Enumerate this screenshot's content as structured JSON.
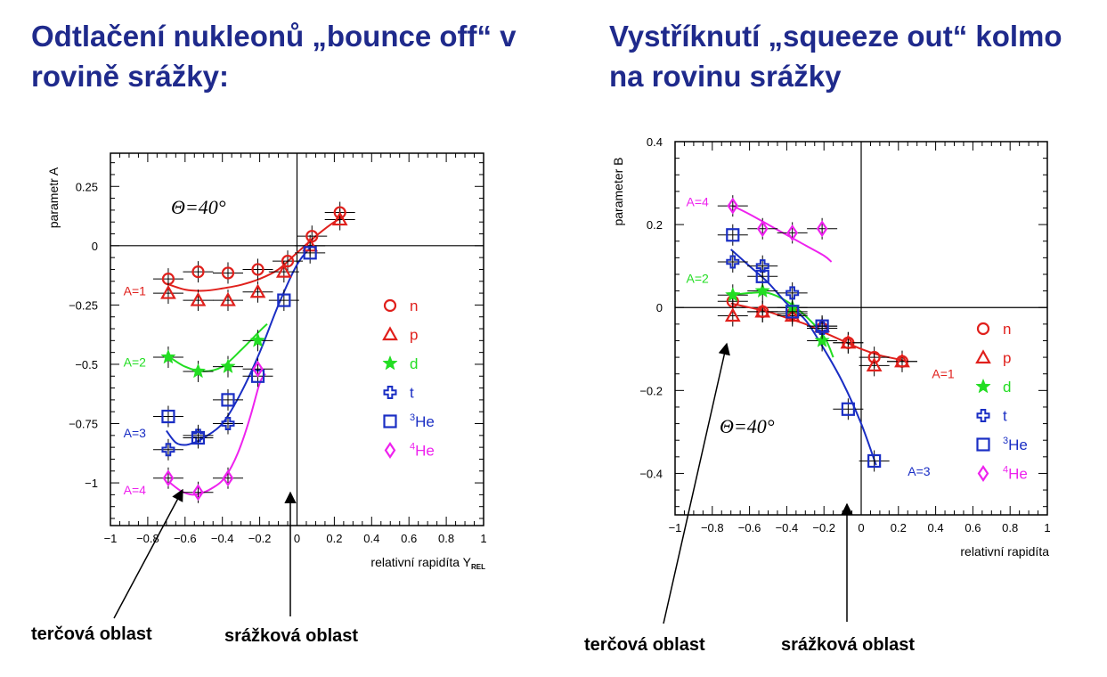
{
  "titles": {
    "left": "Odtlačení nukleonů „bounce off“ v rovině srážky:",
    "right": "Vystříknutí „squeeze out“ kolmo na rovinu srážky"
  },
  "labels": {
    "target_left": "terčová oblast",
    "collision_left": "srážková oblast",
    "target_right": "terčová oblast",
    "collision_right": "srážková oblast"
  },
  "colors": {
    "title": "#1f2a8c",
    "n": "#e0201c",
    "p": "#e0201c",
    "d": "#22dd22",
    "t": "#1a2ec4",
    "he3": "#1a2ec4",
    "he4": "#ee22ee"
  },
  "chart_data": [
    {
      "type": "scatter",
      "theta_label": "Θ=40°",
      "xlabel": "relativní rapidíta Y",
      "xlabel_sub": "REL",
      "ylabel": "parametr A",
      "xlim": [
        -1,
        1
      ],
      "ylim": [
        -1.18,
        0.39
      ],
      "xticks": [
        -1,
        -0.8,
        -0.6,
        -0.4,
        -0.2,
        0,
        0.2,
        0.4,
        0.6,
        0.8,
        1
      ],
      "xtick_labels": [
        "−1",
        "−0.8",
        "−0.6",
        "−0.4",
        "−0.2",
        "0",
        "0.2",
        "0.4",
        "0.6",
        "0.8",
        "1"
      ],
      "yticks": [
        0.25,
        0,
        -0.25,
        -0.5,
        -0.75,
        -1
      ],
      "ytick_labels": [
        "0.25",
        "0",
        "−0.25",
        "−0.5",
        "−0.75",
        "−1"
      ],
      "legend": [
        {
          "key": "n",
          "marker": "circle",
          "label": "n"
        },
        {
          "key": "p",
          "marker": "triangle",
          "label": "p"
        },
        {
          "key": "d",
          "marker": "star",
          "label": "d"
        },
        {
          "key": "t",
          "marker": "cross",
          "label": "t"
        },
        {
          "key": "he3",
          "marker": "square",
          "sup": "3",
          "label": "He"
        },
        {
          "key": "he4",
          "marker": "diamond",
          "sup": "4",
          "label": "He"
        }
      ],
      "series": [
        {
          "name": "n",
          "marker": "circle",
          "color": "n",
          "x": [
            -0.69,
            -0.53,
            -0.37,
            -0.21,
            -0.05,
            0.08,
            0.23
          ],
          "y": [
            -0.14,
            -0.11,
            -0.115,
            -0.1,
            -0.065,
            0.04,
            0.14
          ]
        },
        {
          "name": "p",
          "marker": "triangle",
          "color": "p",
          "x": [
            -0.69,
            -0.53,
            -0.37,
            -0.21,
            -0.07,
            0.07,
            0.23
          ],
          "y": [
            -0.2,
            -0.23,
            -0.23,
            -0.195,
            -0.11,
            0.0,
            0.11
          ]
        },
        {
          "name": "d",
          "marker": "star",
          "color": "d",
          "x": [
            -0.69,
            -0.53,
            -0.37,
            -0.21
          ],
          "y": [
            -0.47,
            -0.53,
            -0.51,
            -0.4
          ]
        },
        {
          "name": "t",
          "marker": "cross",
          "color": "t",
          "x": [
            -0.69,
            -0.53,
            -0.37
          ],
          "y": [
            -0.86,
            -0.8,
            -0.75
          ]
        },
        {
          "name": "3He",
          "marker": "square",
          "color": "he3",
          "x": [
            -0.69,
            -0.53,
            -0.37,
            -0.21,
            -0.07,
            0.07
          ],
          "y": [
            -0.72,
            -0.81,
            -0.65,
            -0.55,
            -0.23,
            -0.03
          ]
        },
        {
          "name": "4He",
          "marker": "diamond",
          "color": "he4",
          "x": [
            -0.69,
            -0.53,
            -0.37,
            -0.21
          ],
          "y": [
            -0.98,
            -1.04,
            -0.98,
            -0.52
          ]
        }
      ],
      "fits": [
        {
          "name": "A=1",
          "color": "n",
          "x": [
            -0.7,
            -0.6,
            -0.5,
            -0.4,
            -0.3,
            -0.2,
            -0.1,
            0,
            0.1,
            0.2,
            0.24
          ],
          "y": [
            -0.16,
            -0.185,
            -0.19,
            -0.18,
            -0.165,
            -0.14,
            -0.1,
            -0.03,
            0.04,
            0.1,
            0.115
          ]
        },
        {
          "name": "A=2",
          "color": "d",
          "x": [
            -0.7,
            -0.6,
            -0.5,
            -0.4,
            -0.3,
            -0.2,
            -0.16
          ],
          "y": [
            -0.46,
            -0.51,
            -0.53,
            -0.51,
            -0.44,
            -0.36,
            -0.33
          ]
        },
        {
          "name": "A=3",
          "color": "t",
          "x": [
            -0.7,
            -0.65,
            -0.6,
            -0.55,
            -0.5,
            -0.4,
            -0.3,
            -0.2,
            -0.1,
            0,
            0.08
          ],
          "y": [
            -0.78,
            -0.83,
            -0.84,
            -0.83,
            -0.81,
            -0.75,
            -0.62,
            -0.45,
            -0.25,
            -0.08,
            0.0
          ]
        },
        {
          "name": "A=4",
          "color": "he4",
          "x": [
            -0.68,
            -0.62,
            -0.56,
            -0.5,
            -0.45,
            -0.4,
            -0.35,
            -0.3,
            -0.25,
            -0.2,
            -0.17
          ],
          "y": [
            -1.0,
            -1.035,
            -1.05,
            -1.04,
            -1.02,
            -0.99,
            -0.93,
            -0.84,
            -0.72,
            -0.58,
            -0.54
          ]
        }
      ],
      "annotations": [
        {
          "text": "A=1",
          "color": "n",
          "x": -0.93,
          "y": -0.19
        },
        {
          "text": "A=2",
          "color": "d",
          "x": -0.93,
          "y": -0.49
        },
        {
          "text": "A=3",
          "color": "t",
          "x": -0.93,
          "y": -0.79
        },
        {
          "text": "A=4",
          "color": "he4",
          "x": -0.93,
          "y": -1.03
        }
      ]
    },
    {
      "type": "scatter",
      "theta_label": "Θ=40°",
      "xlabel": "relativní rapidíta",
      "ylabel": "parameter B",
      "xlim": [
        -1,
        1
      ],
      "ylim": [
        -0.5,
        0.4
      ],
      "xticks": [
        -1,
        -0.8,
        -0.6,
        -0.4,
        -0.2,
        0,
        0.2,
        0.4,
        0.6,
        0.8,
        1
      ],
      "xtick_labels": [
        "−1",
        "−0.8",
        "−0.6",
        "−0.4",
        "−0.2",
        "0",
        "0.2",
        "0.4",
        "0.6",
        "0.8",
        "1"
      ],
      "yticks": [
        0.4,
        0.2,
        0,
        -0.2,
        -0.4
      ],
      "ytick_labels": [
        "0.4",
        "0.2",
        "0",
        "−0.2",
        "−0.4"
      ],
      "legend": [
        {
          "key": "n",
          "marker": "circle",
          "label": "n"
        },
        {
          "key": "p",
          "marker": "triangle",
          "label": "p"
        },
        {
          "key": "d",
          "marker": "star",
          "label": "d"
        },
        {
          "key": "t",
          "marker": "cross",
          "label": "t"
        },
        {
          "key": "he3",
          "marker": "square",
          "sup": "3",
          "label": "He"
        },
        {
          "key": "he4",
          "marker": "diamond",
          "sup": "4",
          "label": "He"
        }
      ],
      "series": [
        {
          "name": "n",
          "marker": "circle",
          "color": "n",
          "x": [
            -0.69,
            -0.53,
            -0.37,
            -0.21,
            -0.07,
            0.07,
            0.22
          ],
          "y": [
            0.015,
            -0.01,
            -0.015,
            -0.05,
            -0.085,
            -0.12,
            -0.13
          ]
        },
        {
          "name": "p",
          "marker": "triangle",
          "color": "p",
          "x": [
            -0.69,
            -0.53,
            -0.37,
            -0.21,
            -0.07,
            0.07,
            0.22
          ],
          "y": [
            -0.02,
            -0.01,
            -0.02,
            -0.045,
            -0.085,
            -0.14,
            -0.13
          ]
        },
        {
          "name": "d",
          "marker": "star",
          "color": "d",
          "x": [
            -0.69,
            -0.53,
            -0.37,
            -0.21
          ],
          "y": [
            0.03,
            0.04,
            0.0,
            -0.08
          ]
        },
        {
          "name": "t",
          "marker": "cross",
          "color": "t",
          "x": [
            -0.69,
            -0.53,
            -0.37,
            -0.21
          ],
          "y": [
            0.11,
            0.1,
            0.035,
            -0.05
          ]
        },
        {
          "name": "3He",
          "marker": "square",
          "color": "he3",
          "x": [
            -0.69,
            -0.53,
            -0.37,
            -0.21,
            -0.07,
            0.07
          ],
          "y": [
            0.175,
            0.075,
            -0.01,
            -0.045,
            -0.245,
            -0.37
          ]
        },
        {
          "name": "4He",
          "marker": "diamond",
          "color": "he4",
          "x": [
            -0.69,
            -0.53,
            -0.37,
            -0.21
          ],
          "y": [
            0.245,
            0.19,
            0.18,
            0.19
          ]
        }
      ],
      "fits": [
        {
          "name": "A=1",
          "color": "n",
          "x": [
            -0.7,
            -0.6,
            -0.5,
            -0.4,
            -0.3,
            -0.2,
            -0.1,
            0,
            0.1,
            0.2,
            0.24
          ],
          "y": [
            0.01,
            0.0,
            -0.01,
            -0.025,
            -0.04,
            -0.06,
            -0.08,
            -0.1,
            -0.115,
            -0.125,
            -0.13
          ]
        },
        {
          "name": "A=2",
          "color": "d",
          "x": [
            -0.7,
            -0.6,
            -0.5,
            -0.4,
            -0.3,
            -0.2,
            -0.15
          ],
          "y": [
            0.03,
            0.035,
            0.035,
            0.015,
            -0.02,
            -0.07,
            -0.12
          ]
        },
        {
          "name": "A=3",
          "color": "t",
          "x": [
            -0.7,
            -0.6,
            -0.5,
            -0.4,
            -0.3,
            -0.2,
            -0.1,
            0,
            0.08
          ],
          "y": [
            0.14,
            0.1,
            0.06,
            0.01,
            -0.03,
            -0.1,
            -0.18,
            -0.28,
            -0.38
          ]
        },
        {
          "name": "A=4",
          "color": "he4",
          "x": [
            -0.69,
            -0.6,
            -0.5,
            -0.4,
            -0.3,
            -0.2,
            -0.16
          ],
          "y": [
            0.245,
            0.225,
            0.2,
            0.175,
            0.15,
            0.125,
            0.11
          ]
        }
      ],
      "annotations": [
        {
          "text": "A=4",
          "color": "he4",
          "x": -0.94,
          "y": 0.255
        },
        {
          "text": "A=2",
          "color": "d",
          "x": -0.94,
          "y": 0.07
        },
        {
          "text": "A=1",
          "color": "n",
          "x": 0.38,
          "y": -0.16
        },
        {
          "text": "A=3",
          "color": "t",
          "x": 0.25,
          "y": -0.395
        }
      ]
    }
  ]
}
